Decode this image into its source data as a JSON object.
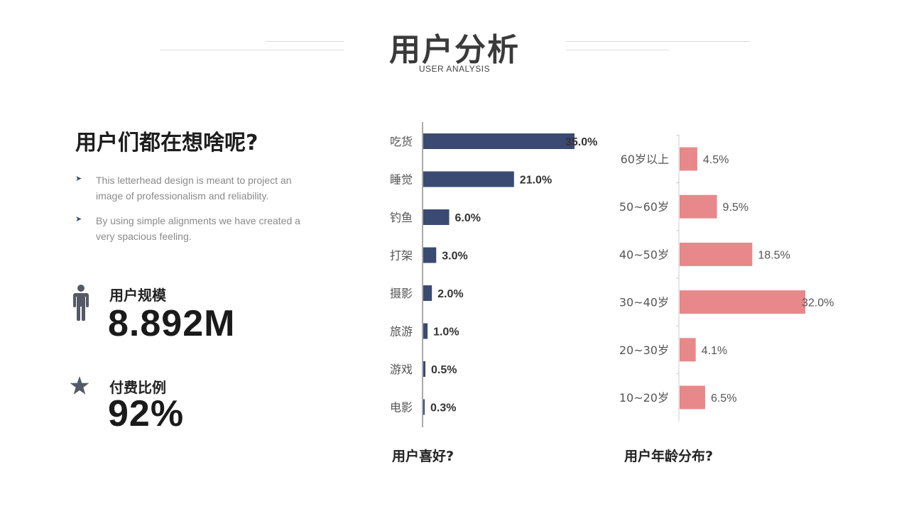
{
  "header": {
    "title": "用户分析",
    "subtitle": "USER ANALYSIS"
  },
  "left": {
    "heading": "用户们都在想啥呢?",
    "bullets": [
      "This letterhead design is meant to project an image of professionalism and reliability.",
      "By using simple alignments we have created a very spacious feeling."
    ],
    "stats": [
      {
        "icon": "person-icon",
        "label": "用户规模",
        "value": "8.892M"
      },
      {
        "icon": "star-icon",
        "label": "付费比例",
        "value": "92%"
      }
    ]
  },
  "colors": {
    "bar_primary": "#3b4a72",
    "bar_secondary": "#e8888a",
    "icon": "#555a66"
  },
  "chart_data": [
    {
      "type": "bar",
      "orientation": "horizontal",
      "title": "用户喜好?",
      "categories": [
        "吃货",
        "睡觉",
        "钓鱼",
        "打架",
        "摄影",
        "旅游",
        "游戏",
        "电影"
      ],
      "values": [
        35.0,
        21.0,
        6.0,
        3.0,
        2.0,
        1.0,
        0.5,
        0.3
      ],
      "labels": [
        "35.0%",
        "21.0%",
        "6.0%",
        "3.0%",
        "2.0%",
        "1.0%",
        "0.5%",
        "0.3%"
      ],
      "xlim": [
        0,
        35
      ],
      "grid": false,
      "legend": "none"
    },
    {
      "type": "bar",
      "orientation": "horizontal",
      "title": "用户年龄分布?",
      "categories": [
        "60岁以上",
        "50~60岁",
        "40~50岁",
        "30~40岁",
        "20~30岁",
        "10~20岁"
      ],
      "values": [
        4.5,
        9.5,
        18.5,
        32.0,
        4.1,
        6.5
      ],
      "labels": [
        "4.5%",
        "9.5%",
        "18.5%",
        "32.0%",
        "4.1%",
        "6.5%"
      ],
      "xlim": [
        0,
        32
      ],
      "grid": false,
      "legend": "none"
    }
  ]
}
